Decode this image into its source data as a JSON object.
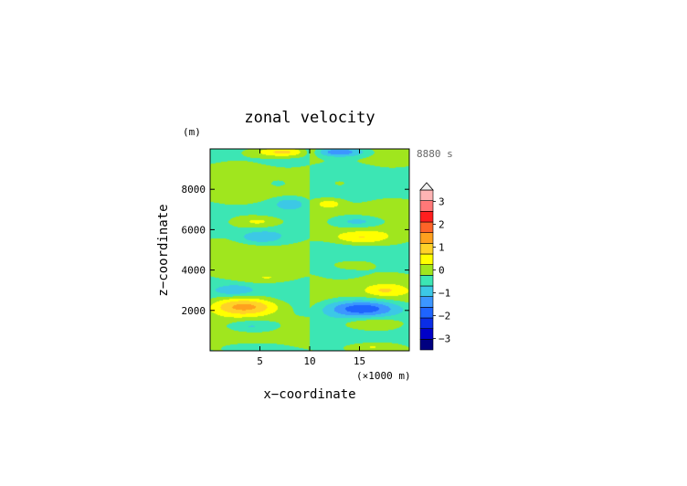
{
  "chart_data": {
    "type": "heatmap",
    "title": "zonal velocity",
    "xlabel": "x−coordinate",
    "ylabel": "z−coordinate",
    "x_unit_label": "(×1000 m)",
    "y_unit_label": "(m)",
    "time_label": "8880 s",
    "xlim": [
      0,
      20
    ],
    "ylim": [
      0,
      10000
    ],
    "x_ticks": [
      5,
      10,
      15
    ],
    "y_ticks": [
      2000,
      4000,
      6000,
      8000
    ],
    "x_tick_labels": [
      "5",
      "10",
      "15"
    ],
    "y_tick_labels": [
      "2000",
      "4000",
      "6000",
      "8000"
    ],
    "colorbar": {
      "levels": [
        -3.5,
        -3.0,
        -2.5,
        -2.0,
        -1.5,
        -1.0,
        -0.5,
        0.0,
        0.5,
        1.0,
        1.5,
        2.0,
        2.5,
        3.0,
        3.5
      ],
      "colors": [
        "#000080",
        "#0000c8",
        "#0a2de6",
        "#1e64ff",
        "#3c96ff",
        "#3cc8e6",
        "#3ce6b4",
        "#a0e61e",
        "#ffff00",
        "#ffd228",
        "#ffa01e",
        "#ff6428",
        "#ff1e1e",
        "#ff7878",
        "#ffb4b4"
      ],
      "tick_values": [
        3,
        2,
        1,
        0,
        -1,
        -2,
        -3
      ],
      "tick_labels": [
        "3",
        "2",
        "1",
        "0",
        "−1",
        "−2",
        "−3"
      ]
    },
    "field_blobs": [
      {
        "x": 3.5,
        "z": 2200,
        "rx": 3.6,
        "rz": 450,
        "value": 1.8
      },
      {
        "x": 15.5,
        "z": 2100,
        "rx": 3.8,
        "rz": 430,
        "value": -2.0
      },
      {
        "x": 4.0,
        "z": 1200,
        "rx": 2.6,
        "rz": 320,
        "value": -0.9
      },
      {
        "x": 16.0,
        "z": 1300,
        "rx": 3.0,
        "rz": 320,
        "value": 0.8
      },
      {
        "x": 2.5,
        "z": 3000,
        "rx": 1.8,
        "rz": 280,
        "value": -0.8
      },
      {
        "x": 17.5,
        "z": 3000,
        "rx": 1.8,
        "rz": 280,
        "value": 0.7
      },
      {
        "x": 6.0,
        "z": 3600,
        "rx": 2.5,
        "rz": 260,
        "value": 0.6
      },
      {
        "x": 14.0,
        "z": 4300,
        "rx": 3.0,
        "rz": 350,
        "value": 0.5
      },
      {
        "x": 5.0,
        "z": 5600,
        "rx": 2.2,
        "rz": 320,
        "value": -0.9
      },
      {
        "x": 15.0,
        "z": 5600,
        "rx": 2.8,
        "rz": 330,
        "value": 1.0
      },
      {
        "x": 5.0,
        "z": 6400,
        "rx": 2.8,
        "rz": 300,
        "value": 0.9
      },
      {
        "x": 15.0,
        "z": 6400,
        "rx": 3.0,
        "rz": 300,
        "value": -0.9
      },
      {
        "x": 8.0,
        "z": 7300,
        "rx": 1.4,
        "rz": 250,
        "value": -0.8
      },
      {
        "x": 12.0,
        "z": 7300,
        "rx": 1.4,
        "rz": 250,
        "value": 0.8
      },
      {
        "x": 6.8,
        "z": 8300,
        "rx": 0.7,
        "rz": 140,
        "value": -0.7
      },
      {
        "x": 13.0,
        "z": 8300,
        "rx": 0.7,
        "rz": 140,
        "value": 0.7
      },
      {
        "x": 7.5,
        "z": 9850,
        "rx": 3.0,
        "rz": 250,
        "value": 1.6
      },
      {
        "x": 12.8,
        "z": 9850,
        "rx": 3.0,
        "rz": 250,
        "value": -1.6
      },
      {
        "x": 4.0,
        "z": 200,
        "rx": 2.5,
        "rz": 200,
        "value": -0.6
      },
      {
        "x": 16.0,
        "z": 200,
        "rx": 2.5,
        "rz": 200,
        "value": 0.6
      }
    ]
  }
}
